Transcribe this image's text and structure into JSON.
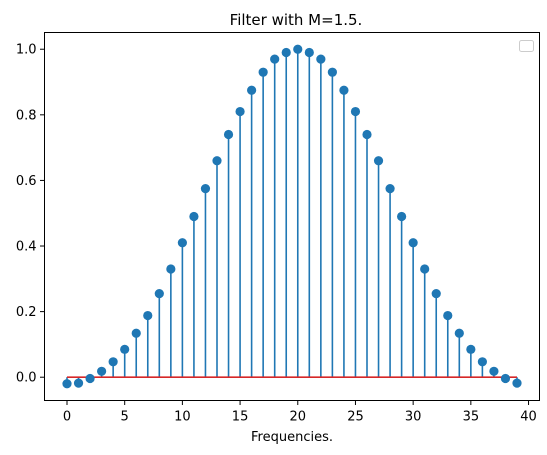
{
  "chart_data": {
    "type": "stem",
    "title": "Filter with M=1.5.",
    "xlabel": "Frequencies.",
    "ylabel": "",
    "xlim": [
      -1.95,
      40.95
    ],
    "ylim": [
      -0.071,
      1.051
    ],
    "xticks": [
      0,
      5,
      10,
      15,
      20,
      25,
      30,
      35,
      40
    ],
    "yticks": [
      0.0,
      0.2,
      0.4,
      0.6,
      0.8,
      1.0
    ],
    "ytick_labels": [
      "0.0",
      "0.2",
      "0.4",
      "0.6",
      "0.8",
      "1.0"
    ],
    "grid": false,
    "legend": "top-right (empty)",
    "colors": {
      "stem": "#1f77b4",
      "baseline": "#d62728"
    },
    "x": [
      0,
      1,
      2,
      3,
      4,
      5,
      6,
      7,
      8,
      9,
      10,
      11,
      12,
      13,
      14,
      15,
      16,
      17,
      18,
      19,
      20,
      21,
      22,
      23,
      24,
      25,
      26,
      27,
      28,
      29,
      30,
      31,
      32,
      33,
      34,
      35,
      36,
      37,
      38,
      39
    ],
    "values": [
      -0.02,
      -0.018,
      -0.004,
      0.018,
      0.047,
      0.085,
      0.134,
      0.188,
      0.255,
      0.33,
      0.41,
      0.49,
      0.575,
      0.66,
      0.74,
      0.81,
      0.875,
      0.93,
      0.97,
      0.99,
      1.0,
      0.99,
      0.97,
      0.93,
      0.875,
      0.81,
      0.74,
      0.66,
      0.575,
      0.49,
      0.41,
      0.33,
      0.255,
      0.188,
      0.134,
      0.085,
      0.047,
      0.018,
      -0.004,
      -0.018
    ],
    "baseline": 0.0,
    "baseline_x": [
      0,
      39
    ]
  }
}
